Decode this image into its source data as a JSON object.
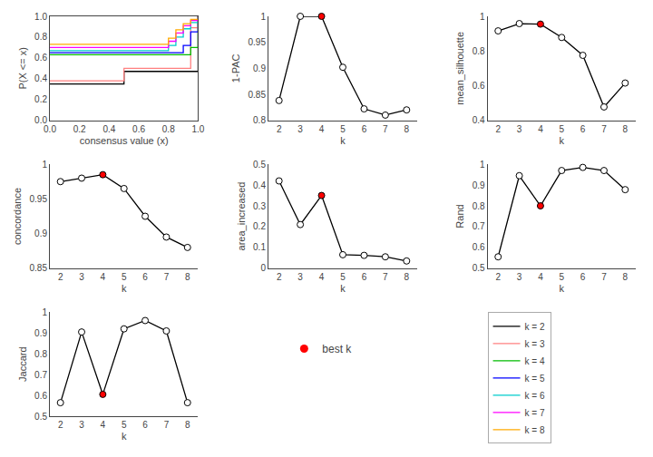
{
  "chart_data": [
    {
      "type": "step",
      "x_label": "consensus value (x)",
      "y_label": "P(X <= x)",
      "x": [
        0.0,
        0.02,
        0.04,
        0.06,
        0.08,
        0.1,
        0.15,
        0.2,
        0.25,
        0.3,
        0.35,
        0.4,
        0.45,
        0.5,
        0.55,
        0.6,
        0.65,
        0.7,
        0.75,
        0.8,
        0.85,
        0.9,
        0.95,
        1.0
      ],
      "series": [
        {
          "name": "k = 2",
          "color": "#000000",
          "values": [
            0.35,
            0.35,
            0.35,
            0.35,
            0.35,
            0.35,
            0.35,
            0.35,
            0.35,
            0.35,
            0.35,
            0.35,
            0.35,
            0.47,
            0.47,
            0.47,
            0.47,
            0.47,
            0.47,
            0.47,
            0.47,
            0.47,
            0.47,
            1.0
          ]
        },
        {
          "name": "k = 3",
          "color": "#ff8080",
          "values": [
            0.38,
            0.38,
            0.38,
            0.38,
            0.38,
            0.38,
            0.38,
            0.38,
            0.38,
            0.38,
            0.38,
            0.38,
            0.38,
            0.5,
            0.5,
            0.5,
            0.5,
            0.5,
            0.5,
            0.5,
            0.5,
            0.5,
            0.89,
            1.0
          ]
        },
        {
          "name": "k = 4",
          "color": "#00bb00",
          "values": [
            0.63,
            0.63,
            0.63,
            0.63,
            0.63,
            0.63,
            0.63,
            0.63,
            0.63,
            0.63,
            0.63,
            0.63,
            0.63,
            0.63,
            0.63,
            0.63,
            0.63,
            0.63,
            0.63,
            0.63,
            0.63,
            0.63,
            0.7,
            1.0
          ]
        },
        {
          "name": "k = 5",
          "color": "#0000ff",
          "values": [
            0.65,
            0.65,
            0.65,
            0.65,
            0.65,
            0.65,
            0.65,
            0.65,
            0.65,
            0.65,
            0.65,
            0.65,
            0.65,
            0.65,
            0.65,
            0.65,
            0.65,
            0.65,
            0.65,
            0.65,
            0.65,
            0.72,
            0.85,
            1.0
          ]
        },
        {
          "name": "k = 6",
          "color": "#00cccc",
          "values": [
            0.67,
            0.67,
            0.67,
            0.67,
            0.67,
            0.67,
            0.67,
            0.67,
            0.67,
            0.67,
            0.67,
            0.67,
            0.67,
            0.67,
            0.67,
            0.67,
            0.67,
            0.67,
            0.67,
            0.72,
            0.8,
            0.88,
            0.94,
            1.0
          ]
        },
        {
          "name": "k = 7",
          "color": "#ff00ff",
          "values": [
            0.7,
            0.7,
            0.7,
            0.7,
            0.7,
            0.7,
            0.7,
            0.7,
            0.7,
            0.7,
            0.7,
            0.7,
            0.7,
            0.7,
            0.7,
            0.7,
            0.7,
            0.7,
            0.7,
            0.76,
            0.84,
            0.91,
            0.96,
            1.0
          ]
        },
        {
          "name": "k = 8",
          "color": "#ffaa00",
          "values": [
            0.73,
            0.73,
            0.73,
            0.73,
            0.73,
            0.73,
            0.73,
            0.73,
            0.73,
            0.73,
            0.73,
            0.73,
            0.73,
            0.73,
            0.73,
            0.73,
            0.73,
            0.73,
            0.73,
            0.79,
            0.87,
            0.93,
            0.97,
            1.0
          ]
        }
      ],
      "xlim": [
        0,
        1
      ],
      "ylim": [
        0,
        1
      ],
      "xticks": [
        {
          "value": 0,
          "label": "0.0"
        },
        0.2,
        0.4,
        0.6,
        0.8,
        {
          "value": 1,
          "label": "1.0"
        }
      ],
      "yticks": [
        {
          "value": 0,
          "label": "0.0"
        },
        0.2,
        0.4,
        0.6,
        0.8,
        {
          "value": 1,
          "label": "1.0"
        }
      ],
      "grid": false
    },
    {
      "type": "line",
      "x_label": "k",
      "y_label": "1-PAC",
      "x": [
        2,
        3,
        4,
        5,
        6,
        7,
        8
      ],
      "series": [
        {
          "color": "#000000",
          "marker": "circle",
          "values": [
            0.838,
            1.0,
            1.0,
            0.902,
            0.822,
            0.81,
            0.82
          ],
          "colors": [
            "#ffffff",
            "#ffffff",
            "#ff0000",
            "#ffffff",
            "#ffffff",
            "#ffffff",
            "#ffffff"
          ]
        }
      ],
      "xlim": [
        1.5,
        8.5
      ],
      "xticks": [
        2,
        3,
        4,
        5,
        6,
        7,
        8
      ],
      "ylim": [
        0.8,
        1
      ],
      "yticks": [
        0.8,
        0.85,
        0.9,
        0.95,
        1
      ],
      "grid": false
    },
    {
      "type": "line",
      "x_label": "k",
      "y_label": "mean_silhouette",
      "x": [
        2,
        3,
        4,
        5,
        6,
        7,
        8
      ],
      "series": [
        {
          "color": "#000000",
          "marker": "circle",
          "values": [
            0.916,
            0.958,
            0.955,
            0.878,
            0.775,
            0.477,
            0.615
          ],
          "colors": [
            "#ffffff",
            "#ffffff",
            "#ff0000",
            "#ffffff",
            "#ffffff",
            "#ffffff",
            "#ffffff"
          ]
        }
      ],
      "xlim": [
        1.5,
        8.5
      ],
      "xticks": [
        2,
        3,
        4,
        5,
        6,
        7,
        8
      ],
      "ylim": [
        0.4,
        1
      ],
      "yticks": [
        0.4,
        0.6,
        0.8,
        1
      ],
      "grid": false
    },
    {
      "type": "line",
      "x_label": "k",
      "y_label": "concordance",
      "x": [
        2,
        3,
        4,
        5,
        6,
        7,
        8
      ],
      "series": [
        {
          "color": "#000000",
          "marker": "circle",
          "values": [
            0.975,
            0.98,
            0.985,
            0.965,
            0.925,
            0.895,
            0.88
          ],
          "colors": [
            "#ffffff",
            "#ffffff",
            "#ff0000",
            "#ffffff",
            "#ffffff",
            "#ffffff",
            "#ffffff"
          ]
        }
      ],
      "xlim": [
        1.5,
        8.5
      ],
      "xticks": [
        2,
        3,
        4,
        5,
        6,
        7,
        8
      ],
      "ylim": [
        0.85,
        1
      ],
      "yticks": [
        0.85,
        0.9,
        0.95,
        1
      ],
      "grid": false
    },
    {
      "type": "line",
      "x_label": "k",
      "y_label": "area_increased",
      "x": [
        2,
        3,
        4,
        5,
        6,
        7,
        8
      ],
      "series": [
        {
          "color": "#000000",
          "marker": "circle",
          "values": [
            0.42,
            0.21,
            0.35,
            0.065,
            0.062,
            0.055,
            0.035
          ],
          "colors": [
            "#ffffff",
            "#ffffff",
            "#ff0000",
            "#ffffff",
            "#ffffff",
            "#ffffff",
            "#ffffff"
          ]
        }
      ],
      "xlim": [
        1.5,
        8.5
      ],
      "xticks": [
        2,
        3,
        4,
        5,
        6,
        7,
        8
      ],
      "ylim": [
        0,
        0.5
      ],
      "yticks": [
        0,
        0.1,
        0.2,
        0.3,
        0.4,
        0.5
      ],
      "grid": false
    },
    {
      "type": "line",
      "x_label": "k",
      "y_label": "Rand",
      "x": [
        2,
        3,
        4,
        5,
        6,
        7,
        8
      ],
      "series": [
        {
          "color": "#000000",
          "marker": "circle",
          "values": [
            0.555,
            0.945,
            0.8,
            0.97,
            0.985,
            0.97,
            0.878
          ],
          "colors": [
            "#ffffff",
            "#ffffff",
            "#ff0000",
            "#ffffff",
            "#ffffff",
            "#ffffff",
            "#ffffff"
          ]
        }
      ],
      "xlim": [
        1.5,
        8.5
      ],
      "xticks": [
        2,
        3,
        4,
        5,
        6,
        7,
        8
      ],
      "ylim": [
        0.5,
        1
      ],
      "yticks": [
        0.5,
        0.6,
        0.7,
        0.8,
        0.9,
        1
      ],
      "grid": false
    },
    {
      "type": "line",
      "x_label": "k",
      "y_label": "Jaccard",
      "x": [
        2,
        3,
        4,
        5,
        6,
        7,
        8
      ],
      "series": [
        {
          "color": "#000000",
          "marker": "circle",
          "values": [
            0.565,
            0.905,
            0.605,
            0.92,
            0.96,
            0.91,
            0.565
          ],
          "colors": [
            "#ffffff",
            "#ffffff",
            "#ff0000",
            "#ffffff",
            "#ffffff",
            "#ffffff",
            "#ffffff"
          ]
        }
      ],
      "xlim": [
        1.5,
        8.5
      ],
      "xticks": [
        2,
        3,
        4,
        5,
        6,
        7,
        8
      ],
      "ylim": [
        0.5,
        1
      ],
      "yticks": [
        0.5,
        0.6,
        0.7,
        0.8,
        0.9,
        1
      ],
      "grid": false
    },
    {
      "type": "legend",
      "series": [
        {
          "name": "best k",
          "color": "#ff0000",
          "marker": "circle"
        }
      ]
    }
  ]
}
